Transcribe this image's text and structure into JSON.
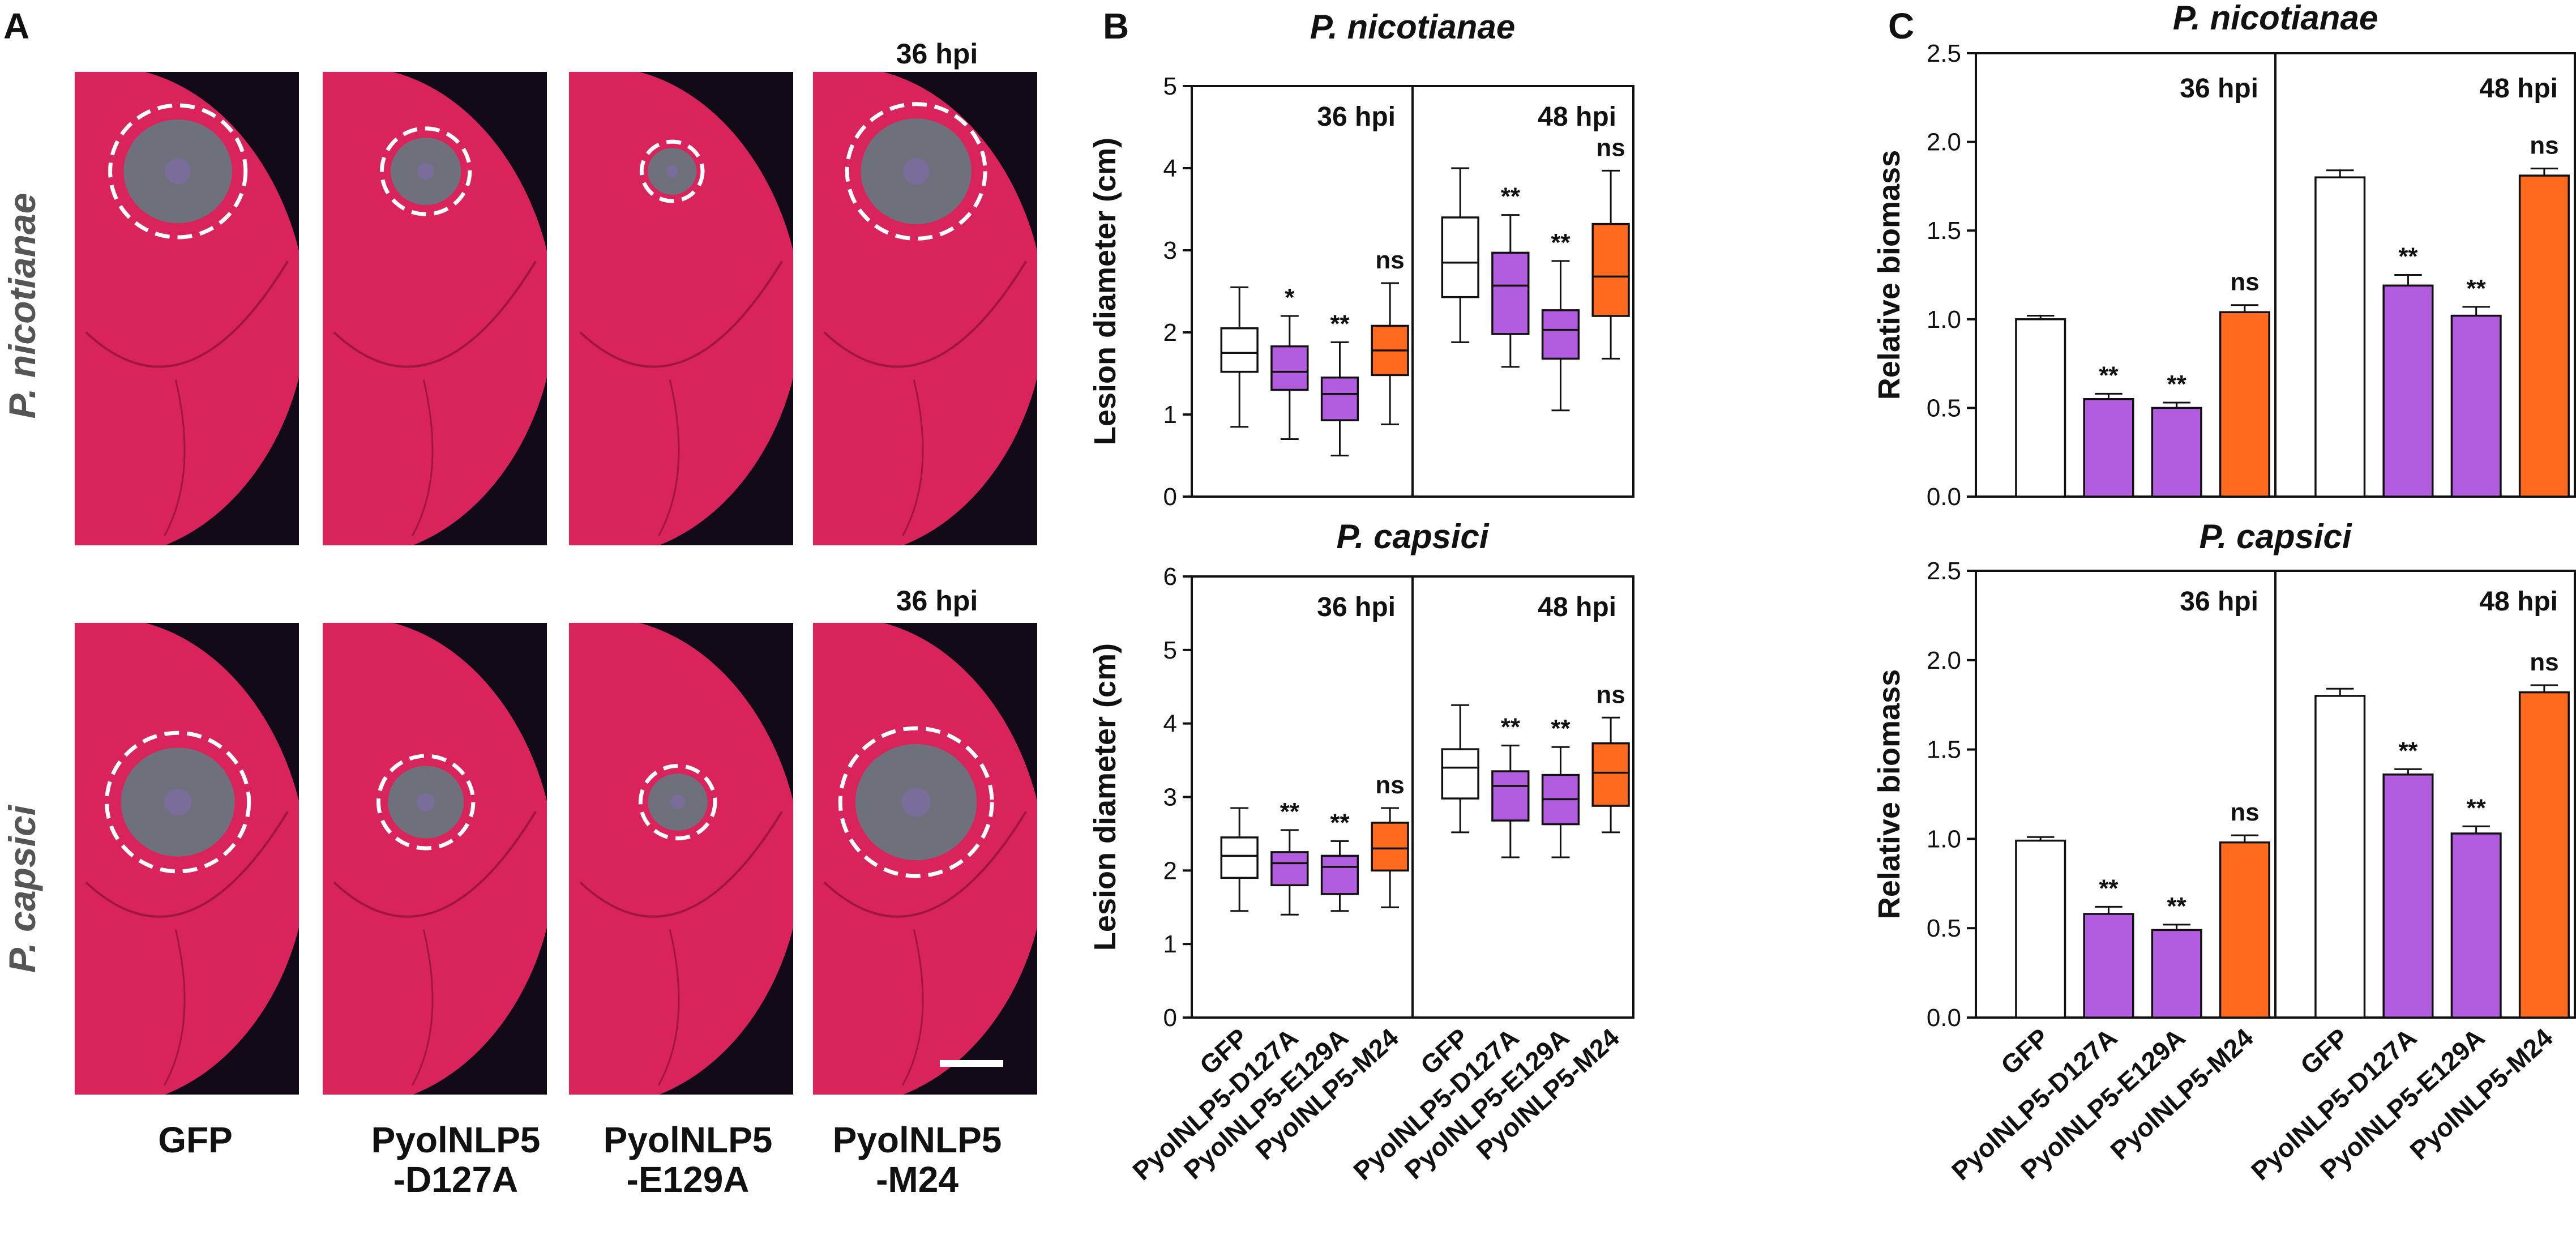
{
  "panel_labels": {
    "a": "A",
    "b": "B",
    "c": "C"
  },
  "panel_a": {
    "row_labels": [
      "P. nicotianae",
      "P. capsici"
    ],
    "column_labels": [
      {
        "line1": "GFP",
        "line2": ""
      },
      {
        "line1": "PyolNLP5",
        "line2": "-D127A"
      },
      {
        "line1": "PyolNLP5",
        "line2": "-E129A"
      },
      {
        "line1": "PyolNLP5",
        "line2": "-M24"
      }
    ],
    "timepoint_label": "36 hpi",
    "lesion_relative_size": [
      [
        1.0,
        0.65,
        0.45,
        1.02
      ],
      [
        1.05,
        0.7,
        0.55,
        1.12
      ]
    ]
  },
  "colors": {
    "GFP": "#ffffff",
    "PyolNLP5-D127A": "#b25ce0",
    "PyolNLP5-E129A": "#b25ce0",
    "PyolNLP5-M24": "#ff6a1f",
    "leaf": "#d8245a",
    "lesion": "#5c7f82",
    "background": "#120a16"
  },
  "chart_data": [
    {
      "type": "box",
      "panel": "B",
      "title": "P. nicotianae",
      "ylabel": "Lesion diameter (cm)",
      "ylim": [
        0,
        5
      ],
      "yticks": [
        0,
        1,
        2,
        3,
        4,
        5
      ],
      "groups": [
        "36 hpi",
        "48 hpi"
      ],
      "categories": [
        "GFP",
        "PyolNLP5-D127A",
        "PyolNLP5-E129A",
        "PyolNLP5-M24"
      ],
      "series": [
        {
          "group": "36 hpi",
          "category": "GFP",
          "min": 0.85,
          "q1": 1.52,
          "median": 1.75,
          "q3": 2.05,
          "max": 2.55,
          "sig": ""
        },
        {
          "group": "36 hpi",
          "category": "PyolNLP5-D127A",
          "min": 0.7,
          "q1": 1.3,
          "median": 1.52,
          "q3": 1.83,
          "max": 2.2,
          "sig": "*"
        },
        {
          "group": "36 hpi",
          "category": "PyolNLP5-E129A",
          "min": 0.5,
          "q1": 0.93,
          "median": 1.25,
          "q3": 1.45,
          "max": 1.88,
          "sig": "**"
        },
        {
          "group": "36 hpi",
          "category": "PyolNLP5-M24",
          "min": 0.88,
          "q1": 1.48,
          "median": 1.78,
          "q3": 2.08,
          "max": 2.6,
          "sig": "ns"
        },
        {
          "group": "48 hpi",
          "category": "GFP",
          "min": 1.88,
          "q1": 2.43,
          "median": 2.85,
          "q3": 3.4,
          "max": 4.0,
          "sig": ""
        },
        {
          "group": "48 hpi",
          "category": "PyolNLP5-D127A",
          "min": 1.58,
          "q1": 1.98,
          "median": 2.57,
          "q3": 2.97,
          "max": 3.43,
          "sig": "**"
        },
        {
          "group": "48 hpi",
          "category": "PyolNLP5-E129A",
          "min": 1.05,
          "q1": 1.68,
          "median": 2.03,
          "q3": 2.27,
          "max": 2.87,
          "sig": "**"
        },
        {
          "group": "48 hpi",
          "category": "PyolNLP5-M24",
          "min": 1.68,
          "q1": 2.2,
          "median": 2.68,
          "q3": 3.32,
          "max": 3.97,
          "sig": "ns"
        }
      ]
    },
    {
      "type": "box",
      "panel": "B",
      "title": "P. capsici",
      "ylabel": "Lesion diameter (cm)",
      "ylim": [
        0,
        6
      ],
      "yticks": [
        0,
        1,
        2,
        3,
        4,
        5,
        6
      ],
      "groups": [
        "36 hpi",
        "48 hpi"
      ],
      "categories": [
        "GFP",
        "PyolNLP5-D127A",
        "PyolNLP5-E129A",
        "PyolNLP5-M24"
      ],
      "series": [
        {
          "group": "36 hpi",
          "category": "GFP",
          "min": 1.45,
          "q1": 1.9,
          "median": 2.2,
          "q3": 2.45,
          "max": 2.85,
          "sig": ""
        },
        {
          "group": "36 hpi",
          "category": "PyolNLP5-D127A",
          "min": 1.4,
          "q1": 1.8,
          "median": 2.1,
          "q3": 2.25,
          "max": 2.55,
          "sig": "**"
        },
        {
          "group": "36 hpi",
          "category": "PyolNLP5-E129A",
          "min": 1.45,
          "q1": 1.68,
          "median": 2.05,
          "q3": 2.2,
          "max": 2.4,
          "sig": "**"
        },
        {
          "group": "36 hpi",
          "category": "PyolNLP5-M24",
          "min": 1.5,
          "q1": 2.0,
          "median": 2.3,
          "q3": 2.65,
          "max": 2.85,
          "sig": "ns"
        },
        {
          "group": "48 hpi",
          "category": "GFP",
          "min": 2.52,
          "q1": 2.98,
          "median": 3.4,
          "q3": 3.65,
          "max": 4.25,
          "sig": ""
        },
        {
          "group": "48 hpi",
          "category": "PyolNLP5-D127A",
          "min": 2.18,
          "q1": 2.68,
          "median": 3.15,
          "q3": 3.35,
          "max": 3.7,
          "sig": "**"
        },
        {
          "group": "48 hpi",
          "category": "PyolNLP5-E129A",
          "min": 2.18,
          "q1": 2.63,
          "median": 2.97,
          "q3": 3.3,
          "max": 3.68,
          "sig": "**"
        },
        {
          "group": "48 hpi",
          "category": "PyolNLP5-M24",
          "min": 2.52,
          "q1": 2.88,
          "median": 3.33,
          "q3": 3.73,
          "max": 4.08,
          "sig": "ns"
        }
      ]
    },
    {
      "type": "bar",
      "panel": "C",
      "title": "P. nicotianae",
      "ylabel": "Relative biomass",
      "ylim": [
        0,
        2.5
      ],
      "yticks": [
        "0.0",
        "0.5",
        "1.0",
        "1.5",
        "2.0",
        "2.5"
      ],
      "groups": [
        "36 hpi",
        "48 hpi"
      ],
      "categories": [
        "GFP",
        "PyolNLP5-D127A",
        "PyolNLP5-E129A",
        "PyolNLP5-M24"
      ],
      "series": [
        {
          "group": "36 hpi",
          "category": "GFP",
          "value": 1.0,
          "err": 0.02,
          "sig": ""
        },
        {
          "group": "36 hpi",
          "category": "PyolNLP5-D127A",
          "value": 0.55,
          "err": 0.03,
          "sig": "**"
        },
        {
          "group": "36 hpi",
          "category": "PyolNLP5-E129A",
          "value": 0.5,
          "err": 0.03,
          "sig": "**"
        },
        {
          "group": "36 hpi",
          "category": "PyolNLP5-M24",
          "value": 1.04,
          "err": 0.04,
          "sig": "ns"
        },
        {
          "group": "48 hpi",
          "category": "GFP",
          "value": 1.8,
          "err": 0.04,
          "sig": ""
        },
        {
          "group": "48 hpi",
          "category": "PyolNLP5-D127A",
          "value": 1.19,
          "err": 0.06,
          "sig": "**"
        },
        {
          "group": "48 hpi",
          "category": "PyolNLP5-E129A",
          "value": 1.02,
          "err": 0.05,
          "sig": "**"
        },
        {
          "group": "48 hpi",
          "category": "PyolNLP5-M24",
          "value": 1.81,
          "err": 0.04,
          "sig": "ns"
        }
      ]
    },
    {
      "type": "bar",
      "panel": "C",
      "title": "P. capsici",
      "ylabel": "Relative biomass",
      "ylim": [
        0,
        2.5
      ],
      "yticks": [
        "0.0",
        "0.5",
        "1.0",
        "1.5",
        "2.0",
        "2.5"
      ],
      "groups": [
        "36 hpi",
        "48 hpi"
      ],
      "categories": [
        "GFP",
        "PyolNLP5-D127A",
        "PyolNLP5-E129A",
        "PyolNLP5-M24"
      ],
      "series": [
        {
          "group": "36 hpi",
          "category": "GFP",
          "value": 0.99,
          "err": 0.02,
          "sig": ""
        },
        {
          "group": "36 hpi",
          "category": "PyolNLP5-D127A",
          "value": 0.58,
          "err": 0.04,
          "sig": "**"
        },
        {
          "group": "36 hpi",
          "category": "PyolNLP5-E129A",
          "value": 0.49,
          "err": 0.03,
          "sig": "**"
        },
        {
          "group": "36 hpi",
          "category": "PyolNLP5-M24",
          "value": 0.98,
          "err": 0.04,
          "sig": "ns"
        },
        {
          "group": "48 hpi",
          "category": "GFP",
          "value": 1.8,
          "err": 0.04,
          "sig": ""
        },
        {
          "group": "48 hpi",
          "category": "PyolNLP5-D127A",
          "value": 1.36,
          "err": 0.03,
          "sig": "**"
        },
        {
          "group": "48 hpi",
          "category": "PyolNLP5-E129A",
          "value": 1.03,
          "err": 0.04,
          "sig": "**"
        },
        {
          "group": "48 hpi",
          "category": "PyolNLP5-M24",
          "value": 1.82,
          "err": 0.04,
          "sig": "ns"
        }
      ]
    }
  ]
}
